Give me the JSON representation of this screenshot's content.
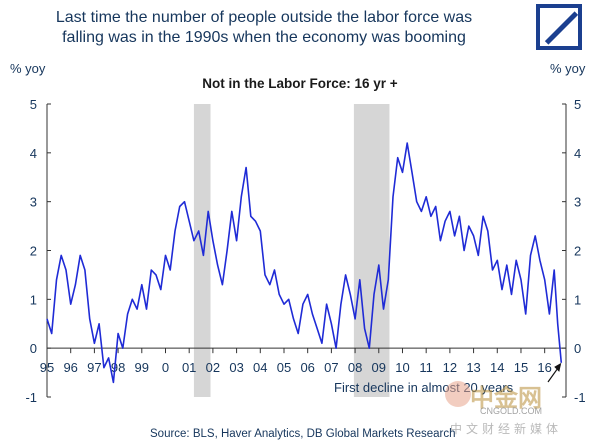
{
  "headline": {
    "line1": "Last time the number of people outside the labor force was",
    "line2": "falling was in the 1990s when the economy was booming"
  },
  "logo": {
    "icon": "deutsche-bank-slash-logo",
    "color": "#1b3f8f"
  },
  "source": "Source: BLS, Haver Analytics, DB Global Markets Research",
  "watermark": {
    "main": "中金网",
    "sub": "CNGOLD.COM",
    "cn": "中文财经新媒体"
  },
  "chart_data": {
    "type": "line",
    "title": "Not in the Labor Force: 16 yr +",
    "ylabel_left": "% yoy",
    "ylabel_right": "% yoy",
    "xlabel": "",
    "ylim": [
      -1,
      5
    ],
    "yticks": [
      "5",
      "4",
      "3",
      "2",
      "1",
      "0",
      "-1"
    ],
    "xlim": [
      1995,
      2016.9
    ],
    "xticks": [
      "95",
      "96",
      "97",
      "98",
      "99",
      "0",
      "01",
      "02",
      "03",
      "04",
      "05",
      "06",
      "07",
      "08",
      "09",
      "10",
      "11",
      "12",
      "13",
      "14",
      "15",
      "16"
    ],
    "grid": false,
    "recessions": [
      {
        "start": 2001.2,
        "end": 2001.9
      },
      {
        "start": 2007.95,
        "end": 2009.45
      }
    ],
    "annotation": {
      "text": "First decline in almost 20 years",
      "x": 2016.7,
      "y": -0.3
    },
    "series": [
      {
        "color": "#1f2bd6",
        "x": [
          1995.0,
          1995.2,
          1995.4,
          1995.6,
          1995.8,
          1996.0,
          1996.2,
          1996.4,
          1996.6,
          1996.8,
          1997.0,
          1997.2,
          1997.4,
          1997.6,
          1997.8,
          1998.0,
          1998.2,
          1998.4,
          1998.6,
          1998.8,
          1999.0,
          1999.2,
          1999.4,
          1999.6,
          1999.8,
          2000.0,
          2000.2,
          2000.4,
          2000.6,
          2000.8,
          2001.0,
          2001.2,
          2001.4,
          2001.6,
          2001.8,
          2002.0,
          2002.2,
          2002.4,
          2002.6,
          2002.8,
          2003.0,
          2003.2,
          2003.4,
          2003.6,
          2003.8,
          2004.0,
          2004.2,
          2004.4,
          2004.6,
          2004.8,
          2005.0,
          2005.2,
          2005.4,
          2005.6,
          2005.8,
          2006.0,
          2006.2,
          2006.4,
          2006.6,
          2006.8,
          2007.0,
          2007.2,
          2007.4,
          2007.6,
          2007.8,
          2008.0,
          2008.2,
          2008.4,
          2008.6,
          2008.8,
          2009.0,
          2009.2,
          2009.4,
          2009.6,
          2009.8,
          2010.0,
          2010.2,
          2010.4,
          2010.6,
          2010.8,
          2011.0,
          2011.2,
          2011.4,
          2011.6,
          2011.8,
          2012.0,
          2012.2,
          2012.4,
          2012.6,
          2012.8,
          2013.0,
          2013.2,
          2013.4,
          2013.6,
          2013.8,
          2014.0,
          2014.2,
          2014.4,
          2014.6,
          2014.8,
          2015.0,
          2015.2,
          2015.4,
          2015.6,
          2015.8,
          2016.0,
          2016.2,
          2016.4,
          2016.55,
          2016.7
        ],
        "y": [
          0.6,
          0.3,
          1.4,
          1.9,
          1.6,
          0.9,
          1.3,
          1.9,
          1.6,
          0.6,
          0.1,
          0.5,
          -0.4,
          -0.2,
          -0.7,
          0.3,
          0.0,
          0.7,
          1.0,
          0.8,
          1.3,
          0.8,
          1.6,
          1.5,
          1.2,
          1.9,
          1.6,
          2.4,
          2.9,
          3.0,
          2.6,
          2.2,
          2.4,
          1.9,
          2.8,
          2.2,
          1.7,
          1.3,
          2.0,
          2.8,
          2.2,
          3.1,
          3.7,
          2.7,
          2.6,
          2.4,
          1.5,
          1.3,
          1.6,
          1.1,
          0.9,
          1.0,
          0.6,
          0.3,
          0.9,
          1.1,
          0.7,
          0.4,
          0.1,
          0.9,
          0.5,
          0.0,
          0.9,
          1.5,
          1.1,
          0.6,
          1.4,
          0.4,
          0.0,
          1.1,
          1.7,
          0.8,
          1.4,
          3.1,
          3.9,
          3.6,
          4.2,
          3.6,
          3.0,
          2.8,
          3.1,
          2.7,
          2.9,
          2.2,
          2.6,
          2.8,
          2.3,
          2.7,
          2.0,
          2.5,
          2.3,
          1.9,
          2.7,
          2.4,
          1.6,
          1.8,
          1.2,
          1.7,
          1.1,
          1.8,
          1.4,
          0.7,
          1.9,
          2.3,
          1.8,
          1.4,
          0.7,
          1.6,
          0.5,
          -0.3
        ]
      }
    ]
  }
}
